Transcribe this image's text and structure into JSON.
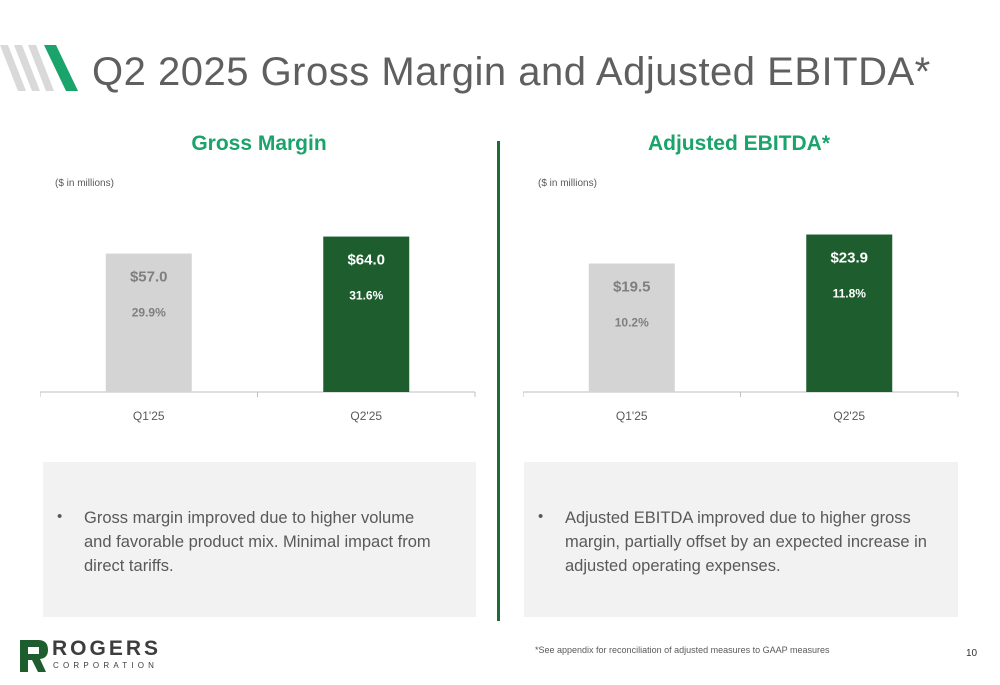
{
  "title": "Q2 2025 Gross Margin and Adjusted EBITDA*",
  "colors": {
    "accent": "#1aa36a",
    "dark_green": "#1e5e2e",
    "light_gray": "#d4d4d4",
    "note_bg": "#f2f2f2"
  },
  "left_panel": {
    "heading": "Gross Margin",
    "units": "($ in millions)",
    "note": "Gross margin improved due to higher volume and favorable product mix. Minimal impact from direct tariffs."
  },
  "right_panel": {
    "heading": "Adjusted EBITDA*",
    "units": "($ in millions)",
    "note": "Adjusted EBITDA improved due to higher gross margin, partially offset by an expected increase in adjusted operating expenses."
  },
  "footnote": "*See appendix for reconciliation of adjusted measures to GAAP measures",
  "page_number": "10",
  "logo": {
    "word": "ROGERS",
    "sub": "CORPORATION"
  },
  "chart_data": [
    {
      "type": "bar",
      "title": "Gross Margin",
      "categories": [
        "Q1'25",
        "Q2'25"
      ],
      "values": [
        57.0,
        64.0
      ],
      "value_labels": [
        "$57.0",
        "$64.0"
      ],
      "secondary_labels": [
        "29.9%",
        "31.6%"
      ],
      "colors": [
        "#d4d4d4",
        "#1e5e2e"
      ],
      "label_colors": [
        "#7f7f7f",
        "#ffffff"
      ],
      "ylim": [
        0,
        70
      ]
    },
    {
      "type": "bar",
      "title": "Adjusted EBITDA*",
      "categories": [
        "Q1'25",
        "Q2'25"
      ],
      "values": [
        19.5,
        23.9
      ],
      "value_labels": [
        "$19.5",
        "$23.9"
      ],
      "secondary_labels": [
        "10.2%",
        "11.8%"
      ],
      "colors": [
        "#d4d4d4",
        "#1e5e2e"
      ],
      "label_colors": [
        "#7f7f7f",
        "#ffffff"
      ],
      "ylim": [
        0,
        25.8
      ]
    }
  ]
}
